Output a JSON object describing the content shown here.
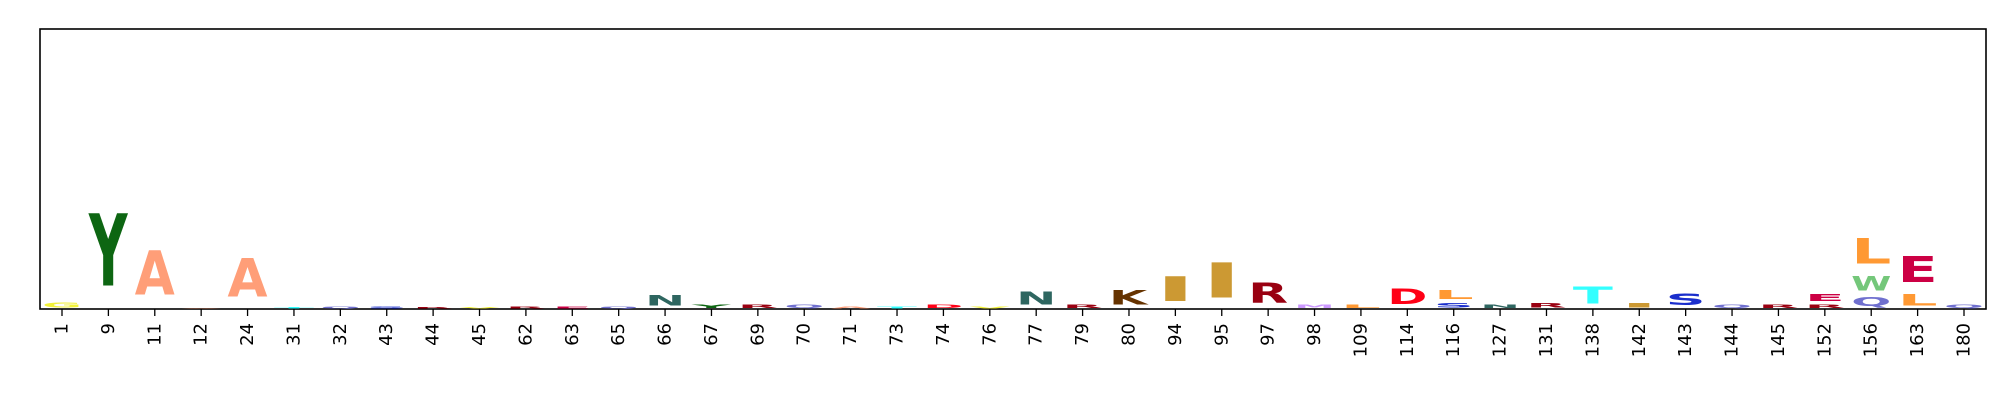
{
  "chart_data": {
    "type": "sequence-logo",
    "title": "",
    "xlabel": "",
    "ylabel": "",
    "ylim": [
      0,
      4.0
    ],
    "y_ticks_shown": false,
    "grid": false,
    "positions": [
      {
        "label": "1",
        "letters": [
          {
            "char": "G",
            "height": 0.12,
            "color": "#f2f23a"
          }
        ]
      },
      {
        "label": "9",
        "letters": [
          {
            "char": "Y",
            "height": 1.65,
            "color": "#0d6612"
          }
        ]
      },
      {
        "label": "11",
        "letters": [
          {
            "char": "A",
            "height": 1.02,
            "color": "#ff9e78"
          }
        ]
      },
      {
        "label": "12",
        "letters": [
          {
            "char": "A",
            "height": 0.02,
            "color": "#ff9e78"
          }
        ]
      },
      {
        "label": "24",
        "letters": [
          {
            "char": "A",
            "height": 0.88,
            "color": "#ff9e78"
          }
        ]
      },
      {
        "label": "31",
        "letters": [
          {
            "char": "T",
            "height": 0.03,
            "color": "#33ffff"
          }
        ]
      },
      {
        "label": "32",
        "letters": [
          {
            "char": "Q",
            "height": 0.04,
            "color": "#7070cf"
          }
        ]
      },
      {
        "label": "43",
        "letters": [
          {
            "char": "S",
            "height": 0.04,
            "color": "#1a2ecc"
          }
        ]
      },
      {
        "label": "44",
        "letters": [
          {
            "char": "R",
            "height": 0.03,
            "color": "#990011"
          }
        ]
      },
      {
        "label": "45",
        "letters": [
          {
            "char": "V",
            "height": 0.03,
            "color": "#f2f23a"
          }
        ]
      },
      {
        "label": "62",
        "letters": [
          {
            "char": "R",
            "height": 0.04,
            "color": "#990011"
          }
        ]
      },
      {
        "label": "63",
        "letters": [
          {
            "char": "E",
            "height": 0.05,
            "color": "#cc0044"
          }
        ]
      },
      {
        "label": "65",
        "letters": [
          {
            "char": "Q",
            "height": 0.05,
            "color": "#7070cf"
          }
        ]
      },
      {
        "label": "66",
        "letters": [
          {
            "char": "N",
            "height": 0.24,
            "color": "#2e6660"
          }
        ]
      },
      {
        "label": "67",
        "letters": [
          {
            "char": "Y",
            "height": 0.08,
            "color": "#0d6612"
          }
        ]
      },
      {
        "label": "69",
        "letters": [
          {
            "char": "R",
            "height": 0.08,
            "color": "#990011"
          }
        ]
      },
      {
        "label": "70",
        "letters": [
          {
            "char": "Q",
            "height": 0.07,
            "color": "#7070cf"
          }
        ]
      },
      {
        "label": "71",
        "letters": [
          {
            "char": "A",
            "height": 0.05,
            "color": "#ff9e78"
          }
        ]
      },
      {
        "label": "73",
        "letters": [
          {
            "char": "T",
            "height": 0.05,
            "color": "#33ffff"
          }
        ]
      },
      {
        "label": "74",
        "letters": [
          {
            "char": "D",
            "height": 0.07,
            "color": "#ff0016"
          }
        ]
      },
      {
        "label": "76",
        "letters": [
          {
            "char": "V",
            "height": 0.05,
            "color": "#f2f23a"
          }
        ]
      },
      {
        "label": "77",
        "letters": [
          {
            "char": "N",
            "height": 0.3,
            "color": "#2e6660"
          }
        ]
      },
      {
        "label": "79",
        "letters": [
          {
            "char": "R",
            "height": 0.08,
            "color": "#990011"
          }
        ]
      },
      {
        "label": "80",
        "letters": [
          {
            "char": "K",
            "height": 0.32,
            "color": "#663300"
          }
        ]
      },
      {
        "label": "94",
        "letters": [
          {
            "char": "I",
            "height": 0.56,
            "color": "#cc9933"
          }
        ]
      },
      {
        "label": "95",
        "letters": [
          {
            "char": "I",
            "height": 0.8,
            "color": "#cc9933"
          }
        ]
      },
      {
        "label": "97",
        "letters": [
          {
            "char": "R",
            "height": 0.46,
            "color": "#990011"
          }
        ]
      },
      {
        "label": "98",
        "letters": [
          {
            "char": "M",
            "height": 0.08,
            "color": "#cc99ff"
          }
        ]
      },
      {
        "label": "109",
        "letters": [
          {
            "char": "L",
            "height": 0.08,
            "color": "#ff9933"
          }
        ]
      },
      {
        "label": "114",
        "letters": [
          {
            "char": "D",
            "height": 0.36,
            "color": "#ff0016"
          }
        ]
      },
      {
        "label": "116",
        "letters": [
          {
            "char": "S",
            "height": 0.1,
            "color": "#1a2ecc"
          },
          {
            "char": "L",
            "height": 0.2,
            "color": "#ff9933"
          }
        ]
      },
      {
        "label": "127",
        "letters": [
          {
            "char": "N",
            "height": 0.07,
            "color": "#2e6660"
          }
        ]
      },
      {
        "label": "131",
        "letters": [
          {
            "char": "R",
            "height": 0.1,
            "color": "#990011"
          }
        ]
      },
      {
        "label": "138",
        "letters": [
          {
            "char": "T",
            "height": 0.38,
            "color": "#33ffff"
          }
        ]
      },
      {
        "label": "142",
        "letters": [
          {
            "char": "I",
            "height": 0.1,
            "color": "#cc9933"
          }
        ]
      },
      {
        "label": "143",
        "letters": [
          {
            "char": "S",
            "height": 0.27,
            "color": "#1a2ecc"
          }
        ]
      },
      {
        "label": "144",
        "letters": [
          {
            "char": "Q",
            "height": 0.08,
            "color": "#7070cf"
          }
        ]
      },
      {
        "label": "145",
        "letters": [
          {
            "char": "R",
            "height": 0.08,
            "color": "#990011"
          }
        ]
      },
      {
        "label": "152",
        "letters": [
          {
            "char": "R",
            "height": 0.08,
            "color": "#990011"
          },
          {
            "char": "E",
            "height": 0.16,
            "color": "#cc0044"
          }
        ]
      },
      {
        "label": "156",
        "letters": [
          {
            "char": "Q",
            "height": 0.2,
            "color": "#7070cf"
          },
          {
            "char": "W",
            "height": 0.33,
            "color": "#74c77a"
          },
          {
            "char": "L",
            "height": 0.58,
            "color": "#ff9933"
          }
        ]
      },
      {
        "label": "163",
        "letters": [
          {
            "char": "L",
            "height": 0.26,
            "color": "#ff9933"
          },
          {
            "char": "E",
            "height": 0.6,
            "color": "#cc0044"
          }
        ]
      },
      {
        "label": "180",
        "letters": [
          {
            "char": "Q",
            "height": 0.08,
            "color": "#7070cf"
          }
        ]
      }
    ]
  }
}
